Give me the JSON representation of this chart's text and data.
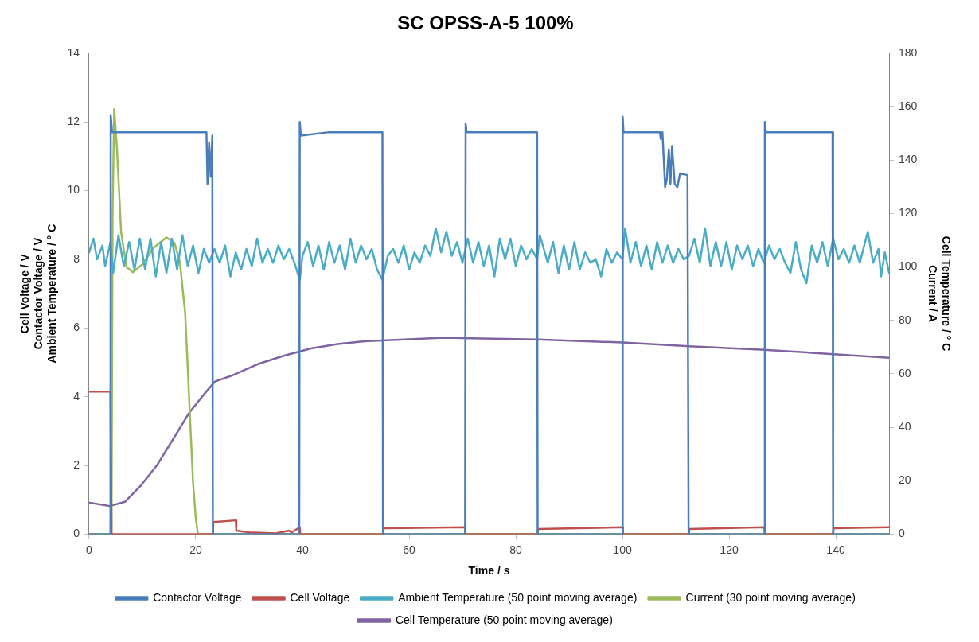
{
  "chart_data": {
    "type": "line",
    "title": "SC OPSS-A-5 100%",
    "xlabel": "Time / s",
    "ylabel": "Cell Voltage / V\nContactor Voltage / V\nAmbient Temperature / ° C",
    "y2label": "Cell Temperature / ° C\nCurrent / A",
    "xlim": [
      0,
      150
    ],
    "xticks": [
      0,
      20,
      40,
      60,
      80,
      100,
      120,
      140
    ],
    "ylim": [
      0,
      14
    ],
    "yticks": [
      0,
      2,
      4,
      6,
      8,
      10,
      12,
      14
    ],
    "y2lim": [
      0,
      180
    ],
    "y2ticks": [
      0,
      20,
      40,
      60,
      80,
      100,
      120,
      140,
      160,
      180
    ],
    "grid": false,
    "legend": "bottom",
    "marker": "none",
    "line_style": "solid",
    "series": [
      {
        "name": "Contactor Voltage",
        "color": "#4a7ebb",
        "x": [
          0,
          4,
          4.05,
          4.3,
          22,
          22.2,
          22.5,
          22.8,
          23.1,
          23.2,
          39.4,
          39.5,
          39.7,
          45,
          55,
          55.1,
          70.5,
          70.6,
          70.8,
          84,
          84.1,
          100,
          100.05,
          100.2,
          107,
          107.2,
          107.5,
          108,
          108.3,
          108.7,
          109,
          109.3,
          109.8,
          110.3,
          110.8,
          112.2,
          112.4,
          126.6,
          126.7,
          126.9,
          139.4,
          139.5,
          150
        ],
        "values": [
          0,
          0,
          12.2,
          11.7,
          11.7,
          10.2,
          11.4,
          10.4,
          11.6,
          0,
          0,
          12.0,
          11.6,
          11.7,
          11.7,
          0,
          0,
          11.95,
          11.7,
          11.7,
          0,
          0,
          12.15,
          11.7,
          11.7,
          11.5,
          11.7,
          10.1,
          10.3,
          11.2,
          10.2,
          11.3,
          10.2,
          10.1,
          10.5,
          10.45,
          0,
          0,
          12.0,
          11.7,
          11.7,
          0,
          0
        ]
      },
      {
        "name": "Cell Voltage",
        "color": "#c0504d",
        "x": [
          0,
          4,
          4.2,
          23.2,
          23.3,
          27.5,
          27.6,
          30,
          35,
          37.5,
          38,
          39.5,
          39.6,
          55.1,
          55.2,
          70.5,
          70.6,
          84.1,
          84.2,
          100,
          100.1,
          112.4,
          112.5,
          126.6,
          126.7,
          139.5,
          139.6,
          150
        ],
        "values": [
          4.15,
          4.15,
          0,
          0,
          0.35,
          0.4,
          0.1,
          0.05,
          0.02,
          0.1,
          0.05,
          0.2,
          0,
          0,
          0.17,
          0.2,
          0,
          0,
          0.15,
          0.2,
          0,
          0,
          0.15,
          0.2,
          0,
          0,
          0.17,
          0.2
        ]
      },
      {
        "name": "Ambient Temperature (50 point moving average)",
        "color": "#4bacc6",
        "x": [
          0,
          0.8,
          1.5,
          2.5,
          3,
          4,
          4.5,
          5.5,
          6.5,
          7.5,
          8.5,
          9.5,
          10.5,
          11.5,
          12.5,
          13.5,
          14.5,
          15.5,
          16.5,
          17.5,
          18.5,
          19.5,
          20.5,
          21.5,
          22.5,
          23.5,
          24.5,
          25.5,
          26.5,
          27.5,
          28.5,
          29.5,
          30.5,
          31.5,
          32.5,
          33.5,
          34.5,
          35.5,
          36.5,
          37.5,
          38.5,
          39.5,
          40,
          41,
          42,
          43,
          44,
          45,
          46,
          47,
          48,
          49,
          50,
          51,
          52,
          53,
          54,
          55,
          56,
          57,
          58,
          59,
          60,
          61,
          62,
          63,
          64,
          65,
          66,
          67,
          68,
          69,
          70,
          71,
          72,
          73,
          74,
          75,
          76,
          77,
          78,
          79,
          80,
          81,
          82,
          83,
          84,
          84.5,
          86,
          87,
          88,
          89,
          90,
          91,
          92,
          93,
          94,
          95,
          96,
          97,
          98,
          99,
          100,
          100.5,
          101.5,
          102.5,
          103.5,
          104.5,
          105.5,
          106.5,
          107.5,
          108.5,
          109.5,
          110.5,
          111.5,
          112.5,
          113.5,
          114.5,
          115.5,
          116.5,
          117.5,
          118.5,
          119.5,
          120.5,
          121.5,
          122.5,
          123.5,
          124.5,
          125.5,
          126.5,
          127.5,
          128.5,
          129.5,
          130.5,
          131.5,
          132.5,
          133.5,
          134.5,
          135.5,
          136.5,
          137.5,
          138.5,
          139.5,
          140.5,
          141.5,
          142.5,
          143.5,
          144.5,
          145.5,
          146,
          147,
          148,
          148.5,
          149.2,
          150
        ],
        "values": [
          8.2,
          8.6,
          8.0,
          8.4,
          7.8,
          8.5,
          7.6,
          8.7,
          7.8,
          8.5,
          7.7,
          8.6,
          7.7,
          8.6,
          7.5,
          8.5,
          7.6,
          8.6,
          7.7,
          8.7,
          7.8,
          8.4,
          7.6,
          8.3,
          7.9,
          8.3,
          7.9,
          8.4,
          7.5,
          8.2,
          7.7,
          8.3,
          7.8,
          8.6,
          7.9,
          8.3,
          7.9,
          8.4,
          8.0,
          8.3,
          7.9,
          7.4,
          8.1,
          8.5,
          7.8,
          8.4,
          7.7,
          8.5,
          7.9,
          8.4,
          7.7,
          8.6,
          7.9,
          8.4,
          8.0,
          8.3,
          7.7,
          7.4,
          8.1,
          8.3,
          7.9,
          8.4,
          7.7,
          8.2,
          7.9,
          8.4,
          8.1,
          8.9,
          8.2,
          8.8,
          8.1,
          8.5,
          7.9,
          8.6,
          7.9,
          8.5,
          7.8,
          8.4,
          7.5,
          8.6,
          8.0,
          8.6,
          7.8,
          8.4,
          8.0,
          8.3,
          8.0,
          8.7,
          7.9,
          8.5,
          7.6,
          8.4,
          7.7,
          8.5,
          7.7,
          8.2,
          7.9,
          8.0,
          7.5,
          8.3,
          7.9,
          8.2,
          8.0,
          8.9,
          7.9,
          8.5,
          7.8,
          8.4,
          7.7,
          8.5,
          7.9,
          8.4,
          7.9,
          8.3,
          8.0,
          8.1,
          8.6,
          7.9,
          8.9,
          7.8,
          8.5,
          7.8,
          8.5,
          7.7,
          8.4,
          8.0,
          8.4,
          7.8,
          8.3,
          7.9,
          8.4,
          8.0,
          8.3,
          7.9,
          7.6,
          8.5,
          7.7,
          7.3,
          8.4,
          7.9,
          8.5,
          7.8,
          8.6,
          8.0,
          8.3,
          7.9,
          8.4,
          7.9,
          8.5,
          8.8,
          7.9,
          8.3,
          7.5,
          8.2,
          7.6
        ]
      },
      {
        "name": "Current (30 point moving average)",
        "color": "#9bbb59",
        "axis": "y2",
        "x": [
          0,
          4.2,
          4.4,
          4.7,
          5.2,
          6,
          7,
          8.2,
          10,
          12,
          14.5,
          16,
          17,
          18,
          18.5,
          19,
          19.5,
          20,
          20.4,
          150
        ],
        "values": [
          0,
          0,
          120,
          159,
          145,
          113,
          100,
          98,
          101,
          107,
          111,
          109,
          102,
          83,
          62,
          40,
          19,
          6,
          0,
          0
        ]
      },
      {
        "name": "Cell Temperature (50 point moving average)",
        "color": "#8064a2",
        "axis": "y2",
        "x": [
          0.15,
          3.9,
          6.7,
          9.7,
          12.7,
          15.7,
          18.7,
          21.7,
          23.6,
          26.6,
          31.6,
          36.6,
          41.6,
          46.6,
          51.6,
          59.1,
          66.6,
          71.6,
          84.1,
          100,
          112.5,
          126.6,
          139,
          150
        ],
        "values": [
          11.7,
          10.5,
          12.1,
          18.2,
          25.7,
          35.4,
          45.2,
          52.7,
          57.1,
          59.2,
          63.6,
          66.8,
          69.5,
          71.1,
          72.2,
          72.8,
          73.5,
          73.3,
          72.8,
          71.7,
          70.3,
          69,
          67.4,
          66
        ]
      }
    ]
  }
}
